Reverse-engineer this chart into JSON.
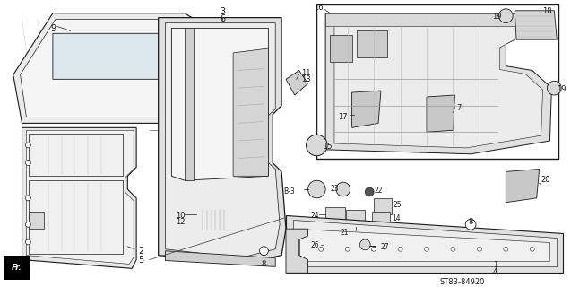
{
  "bg_color": "#ffffff",
  "line_color": "#1a1a1a",
  "part_fill": "#e8e8e8",
  "part_fill2": "#d0d0d0",
  "diagram_code": "ST83-84920",
  "fig_w": 6.37,
  "fig_h": 3.2,
  "dpi": 100
}
